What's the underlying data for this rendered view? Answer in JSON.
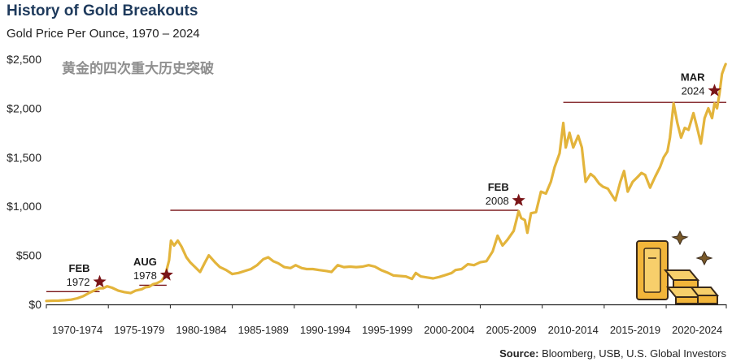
{
  "header": {
    "title": "History of Gold Breakouts",
    "subtitle": "Gold Price Per Ounce, 1970 – 2024"
  },
  "note": "黄金的四次重大历史突破",
  "source": {
    "label": "Source:",
    "text": "Bloomberg, USB, U.S. Global Investors"
  },
  "colors": {
    "line": "#e3b43b",
    "reference_line": "#7a1518",
    "star": "#7a1518",
    "axis": "#222222"
  },
  "chart_data": {
    "type": "line",
    "title": "History of Gold Breakouts",
    "subtitle": "Gold Price Per Ounce, 1970 – 2024",
    "xlabel": "",
    "ylabel": "",
    "xlim": [
      1970.0,
      2024.85
    ],
    "ylim": [
      0,
      2500
    ],
    "y_ticks": [
      0,
      500,
      1000,
      1500,
      2000,
      2500
    ],
    "y_tick_labels": [
      "$0",
      "$500",
      "$1,000",
      "$1,500",
      "$2,000",
      "$2,500"
    ],
    "x_tick_labels": [
      "1970-1974",
      "1975-1979",
      "1980-1984",
      "1985-1989",
      "1990-1994",
      "1995-1999",
      "2000-2004",
      "2005-2009",
      "2010-2014",
      "2015-2019",
      "2020-2024"
    ],
    "grid": false,
    "legend": "none",
    "series": [
      {
        "points": [
          [
            1970.0,
            35
          ],
          [
            1970.5,
            37
          ],
          [
            1971.0,
            38
          ],
          [
            1971.5,
            42
          ],
          [
            1972.0,
            48
          ],
          [
            1972.5,
            62
          ],
          [
            1973.0,
            85
          ],
          [
            1973.5,
            120
          ],
          [
            1974.0,
            150
          ],
          [
            1974.3,
            165
          ],
          [
            1974.6,
            165
          ],
          [
            1974.9,
            185
          ],
          [
            1975.3,
            170
          ],
          [
            1975.8,
            140
          ],
          [
            1976.3,
            125
          ],
          [
            1976.8,
            115
          ],
          [
            1977.2,
            140
          ],
          [
            1977.7,
            155
          ],
          [
            1978.0,
            175
          ],
          [
            1978.3,
            180
          ],
          [
            1978.6,
            205
          ],
          [
            1978.9,
            215
          ],
          [
            1979.3,
            240
          ],
          [
            1979.6,
            300
          ],
          [
            1979.9,
            450
          ],
          [
            1980.05,
            650
          ],
          [
            1980.3,
            600
          ],
          [
            1980.6,
            650
          ],
          [
            1980.9,
            590
          ],
          [
            1981.3,
            480
          ],
          [
            1981.6,
            430
          ],
          [
            1982.0,
            380
          ],
          [
            1982.4,
            330
          ],
          [
            1982.8,
            430
          ],
          [
            1983.1,
            500
          ],
          [
            1983.6,
            430
          ],
          [
            1984.0,
            380
          ],
          [
            1984.5,
            350
          ],
          [
            1985.0,
            310
          ],
          [
            1985.5,
            320
          ],
          [
            1986.0,
            340
          ],
          [
            1986.5,
            360
          ],
          [
            1987.0,
            400
          ],
          [
            1987.5,
            460
          ],
          [
            1987.9,
            480
          ],
          [
            1988.3,
            440
          ],
          [
            1988.7,
            420
          ],
          [
            1989.2,
            380
          ],
          [
            1989.7,
            370
          ],
          [
            1990.1,
            400
          ],
          [
            1990.6,
            370
          ],
          [
            1991.0,
            360
          ],
          [
            1991.5,
            360
          ],
          [
            1992.0,
            350
          ],
          [
            1992.6,
            340
          ],
          [
            1993.0,
            330
          ],
          [
            1993.5,
            400
          ],
          [
            1994.0,
            380
          ],
          [
            1994.5,
            385
          ],
          [
            1995.0,
            380
          ],
          [
            1995.5,
            385
          ],
          [
            1996.0,
            400
          ],
          [
            1996.5,
            385
          ],
          [
            1997.0,
            350
          ],
          [
            1997.5,
            325
          ],
          [
            1998.0,
            295
          ],
          [
            1998.5,
            290
          ],
          [
            1999.0,
            285
          ],
          [
            1999.5,
            260
          ],
          [
            1999.8,
            320
          ],
          [
            2000.2,
            285
          ],
          [
            2000.7,
            275
          ],
          [
            2001.2,
            265
          ],
          [
            2001.7,
            280
          ],
          [
            2002.2,
            300
          ],
          [
            2002.7,
            320
          ],
          [
            2003.0,
            350
          ],
          [
            2003.5,
            360
          ],
          [
            2004.0,
            410
          ],
          [
            2004.5,
            400
          ],
          [
            2005.0,
            430
          ],
          [
            2005.5,
            440
          ],
          [
            2006.0,
            540
          ],
          [
            2006.4,
            700
          ],
          [
            2006.8,
            600
          ],
          [
            2007.2,
            660
          ],
          [
            2007.7,
            750
          ],
          [
            2008.1,
            950
          ],
          [
            2008.3,
            880
          ],
          [
            2008.6,
            860
          ],
          [
            2008.8,
            730
          ],
          [
            2009.1,
            930
          ],
          [
            2009.5,
            940
          ],
          [
            2009.9,
            1150
          ],
          [
            2010.3,
            1130
          ],
          [
            2010.7,
            1250
          ],
          [
            2011.0,
            1400
          ],
          [
            2011.4,
            1540
          ],
          [
            2011.7,
            1850
          ],
          [
            2011.9,
            1600
          ],
          [
            2012.2,
            1750
          ],
          [
            2012.5,
            1600
          ],
          [
            2012.9,
            1720
          ],
          [
            2013.2,
            1600
          ],
          [
            2013.5,
            1250
          ],
          [
            2013.9,
            1330
          ],
          [
            2014.2,
            1300
          ],
          [
            2014.6,
            1230
          ],
          [
            2014.9,
            1200
          ],
          [
            2015.3,
            1180
          ],
          [
            2015.7,
            1100
          ],
          [
            2015.9,
            1060
          ],
          [
            2016.3,
            1250
          ],
          [
            2016.6,
            1360
          ],
          [
            2016.9,
            1150
          ],
          [
            2017.3,
            1250
          ],
          [
            2017.7,
            1300
          ],
          [
            2018.0,
            1340
          ],
          [
            2018.3,
            1320
          ],
          [
            2018.7,
            1190
          ],
          [
            2019.1,
            1300
          ],
          [
            2019.5,
            1400
          ],
          [
            2019.8,
            1500
          ],
          [
            2020.1,
            1560
          ],
          [
            2020.3,
            1700
          ],
          [
            2020.6,
            2050
          ],
          [
            2020.9,
            1850
          ],
          [
            2021.2,
            1700
          ],
          [
            2021.5,
            1800
          ],
          [
            2021.8,
            1780
          ],
          [
            2022.2,
            1950
          ],
          [
            2022.5,
            1800
          ],
          [
            2022.8,
            1640
          ],
          [
            2023.1,
            1900
          ],
          [
            2023.4,
            2000
          ],
          [
            2023.7,
            1900
          ],
          [
            2023.9,
            2050
          ],
          [
            2024.1,
            2000
          ],
          [
            2024.3,
            2150
          ],
          [
            2024.5,
            2350
          ],
          [
            2024.7,
            2420
          ],
          [
            2024.8,
            2450
          ]
        ]
      }
    ],
    "annotations": [
      {
        "month": "FEB",
        "year": "1972",
        "x": 1974.3,
        "y": 230,
        "line": [
          1970.0,
          1974.3,
          130
        ]
      },
      {
        "month": "AUG",
        "year": "1978",
        "x": 1979.7,
        "y": 300,
        "line": [
          1977.5,
          1979.7,
          195
        ]
      },
      {
        "month": "FEB",
        "year": "2008",
        "x": 2008.1,
        "y": 1060,
        "line": [
          1980.0,
          2008.1,
          960
        ]
      },
      {
        "month": "MAR",
        "year": "2024",
        "x": 2023.9,
        "y": 2180,
        "line": [
          2011.7,
          2024.85,
          2060
        ]
      }
    ]
  }
}
